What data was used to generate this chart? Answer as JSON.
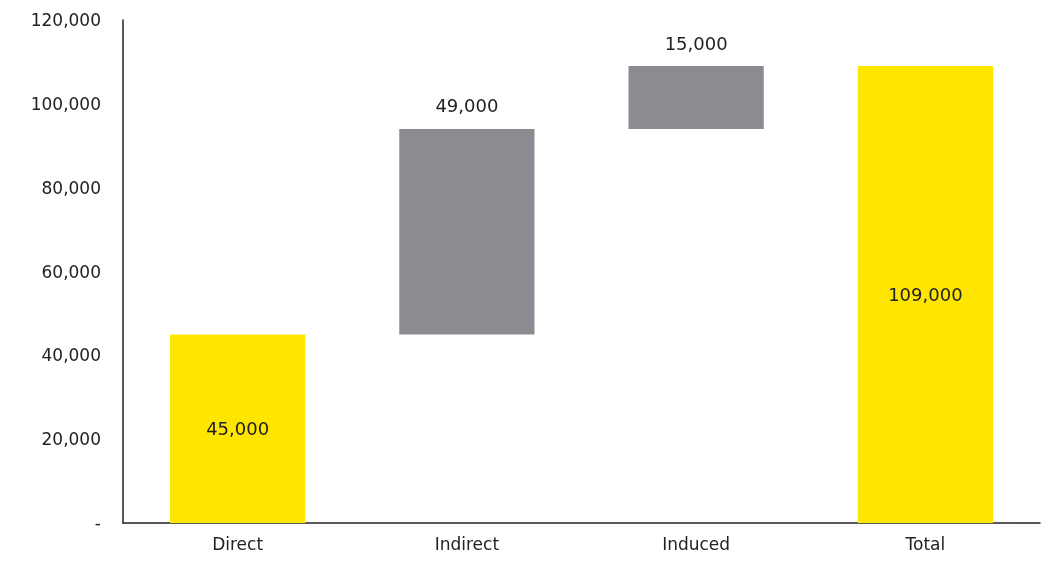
{
  "chart_data": {
    "type": "bar",
    "categories": [
      "Direct",
      "Indirect",
      "Induced",
      "Total"
    ],
    "values": [
      45000,
      49000,
      15000,
      109000
    ],
    "base": [
      0,
      45000,
      94000,
      0
    ],
    "colors": [
      "#ffe600",
      "#8c8b91",
      "#8c8b91",
      "#ffe600"
    ],
    "value_labels": [
      "45,000",
      "49,000",
      "15,000",
      "109,000"
    ],
    "ylim": [
      0,
      120000
    ],
    "yticks": [
      {
        "value": 0,
        "label": "-"
      },
      {
        "value": 20000,
        "label": "20,000"
      },
      {
        "value": 40000,
        "label": "40,000"
      },
      {
        "value": 60000,
        "label": "60,000"
      },
      {
        "value": 80000,
        "label": "80,000"
      },
      {
        "value": 100000,
        "label": "100,000"
      },
      {
        "value": 120000,
        "label": "120,000"
      }
    ],
    "grid": false
  }
}
